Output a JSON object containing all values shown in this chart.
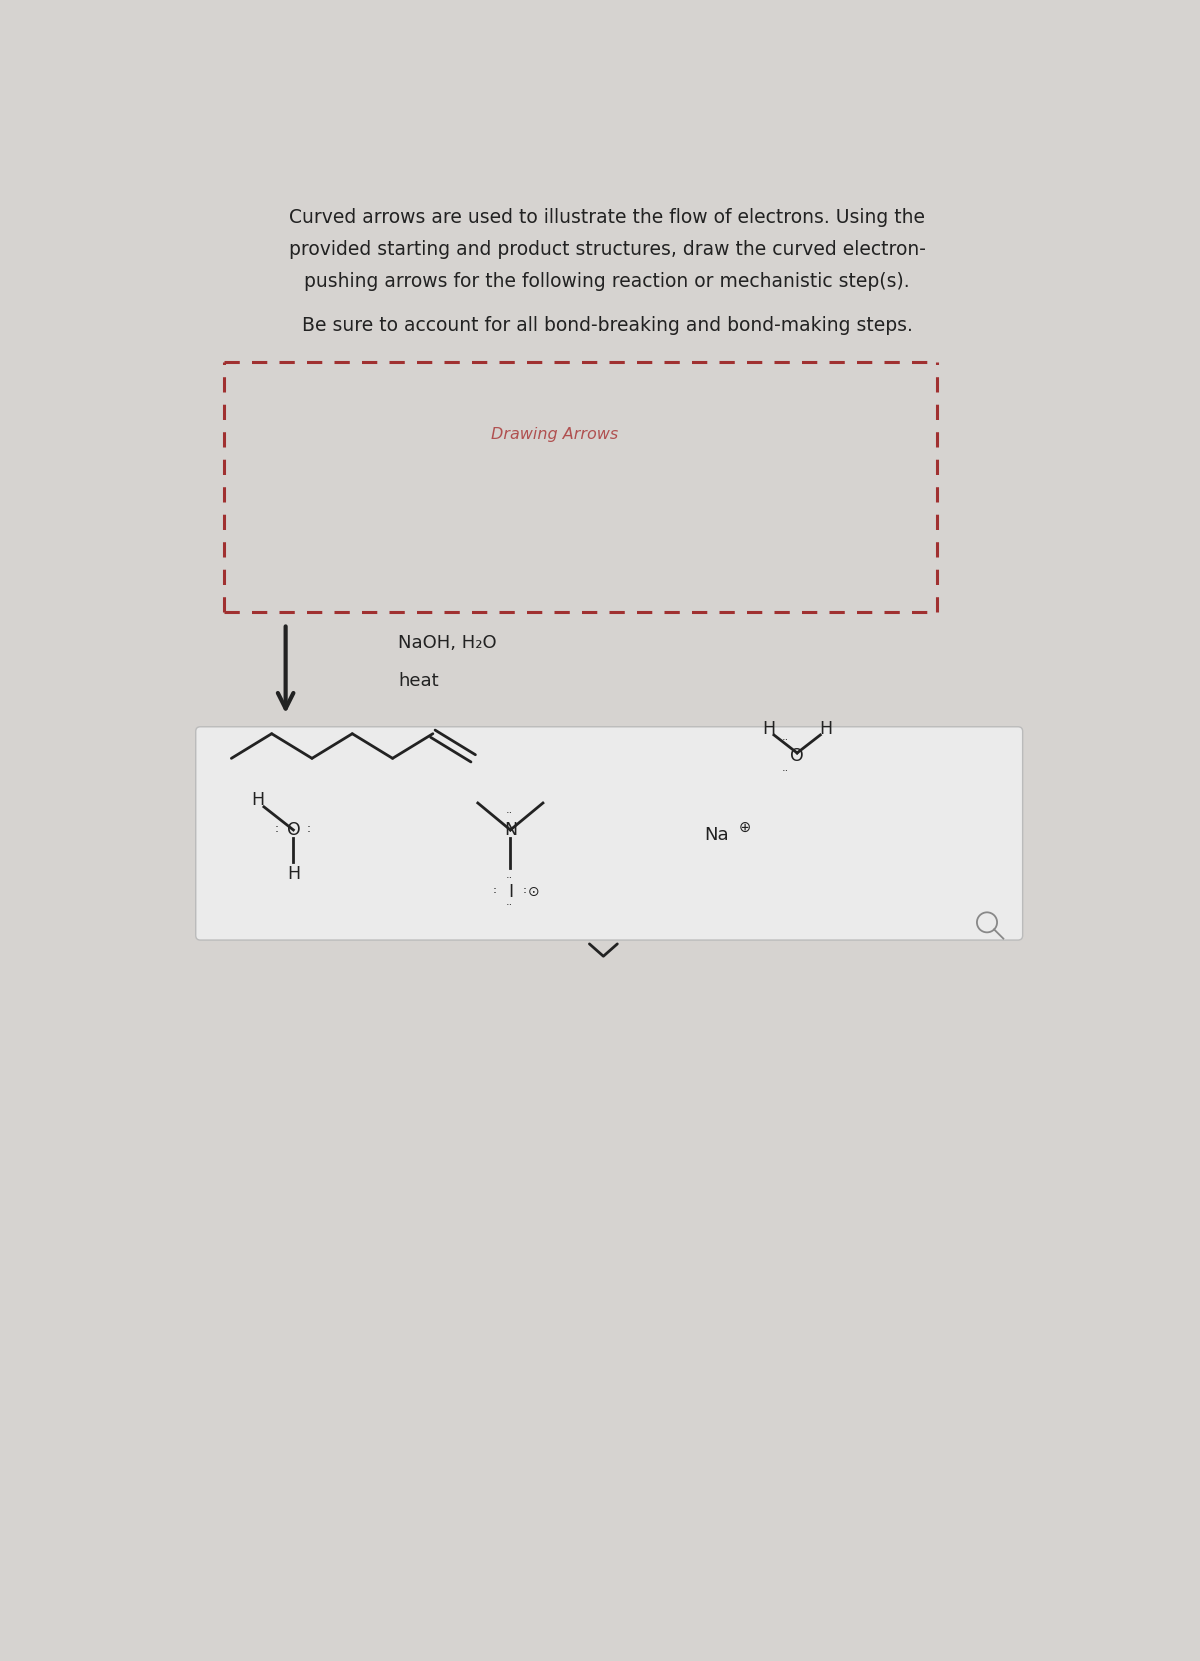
{
  "bg_color": "#d6d3d0",
  "title_line1": "Curved arrows are used to illustrate the flow of electrons. Using the",
  "title_line2": "provided starting and product structures, draw the curved electron-",
  "title_line3": "pushing arrows for the following reaction or mechanistic step(s).",
  "title_line4": "Be sure to account for all bond-breaking and bond-making steps.",
  "drawing_arrows_label": "Drawing Arrows",
  "reagent_line1": "NaOH, H₂O",
  "reagent_line2": "heat",
  "dashed_box_color": "#a03030",
  "arrow_color": "#222222",
  "text_color": "#222222",
  "red_text_color": "#b05050",
  "prod_box_bg": "#ebebeb",
  "prod_box_edge": "#bbbbbb",
  "magnify_color": "#888888"
}
